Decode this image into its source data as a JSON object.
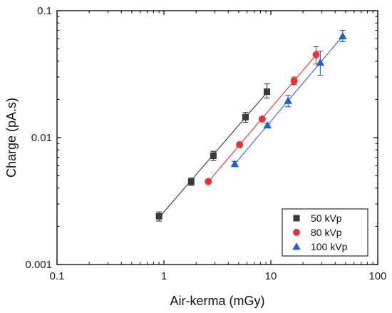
{
  "chart_data": {
    "type": "scatter",
    "title": "",
    "xlabel": "Air-kerma (mGy)",
    "ylabel": "Charge (pA.s)",
    "xscale": "log",
    "yscale": "log",
    "xlim": [
      0.1,
      100
    ],
    "ylim": [
      0.001,
      0.1
    ],
    "x_ticks": [
      {
        "value": 0.1,
        "label": "0.1"
      },
      {
        "value": 1,
        "label": "1"
      },
      {
        "value": 10,
        "label": "10"
      },
      {
        "value": 100,
        "label": "100"
      }
    ],
    "y_ticks": [
      {
        "value": 0.001,
        "label": "0.001"
      },
      {
        "value": 0.01,
        "label": "0.01"
      },
      {
        "value": 0.1,
        "label": "0.1"
      }
    ],
    "grid": false,
    "legend": {
      "position": "bottom-right",
      "entries": [
        "50 kVp",
        "80 kVp",
        "100 kVp"
      ]
    },
    "series": [
      {
        "name": "50 kVp",
        "marker": "square",
        "color": "#3a3a3a",
        "line_color": "#3a3a3a",
        "fit": true,
        "fit_range": [
          0.9,
          9.5
        ],
        "points": [
          {
            "x": 0.9,
            "y": 0.0024,
            "err_low": 0.0022,
            "err_high": 0.0026
          },
          {
            "x": 1.8,
            "y": 0.0045,
            "err_low": 0.0042,
            "err_high": 0.0048
          },
          {
            "x": 2.9,
            "y": 0.0072,
            "err_low": 0.0066,
            "err_high": 0.0078
          },
          {
            "x": 5.8,
            "y": 0.0145,
            "err_low": 0.0132,
            "err_high": 0.0158
          },
          {
            "x": 9.2,
            "y": 0.023,
            "err_low": 0.0205,
            "err_high": 0.0265
          }
        ]
      },
      {
        "name": "80 kVp",
        "marker": "circle",
        "color": "#e8323a",
        "line_color": "#e8323a",
        "fit": true,
        "fit_range": [
          2.6,
          28
        ],
        "points": [
          {
            "x": 2.6,
            "y": 0.0045,
            "err_low": 0.0044,
            "err_high": 0.0046
          },
          {
            "x": 5.1,
            "y": 0.0088,
            "err_low": 0.0084,
            "err_high": 0.0092
          },
          {
            "x": 8.3,
            "y": 0.014,
            "err_low": 0.0136,
            "err_high": 0.0144
          },
          {
            "x": 16.5,
            "y": 0.028,
            "err_low": 0.0262,
            "err_high": 0.03
          },
          {
            "x": 26.5,
            "y": 0.045,
            "err_low": 0.038,
            "err_high": 0.052
          }
        ]
      },
      {
        "name": "100 kVp",
        "marker": "triangle",
        "color": "#1f5fd6",
        "line_color": "#3a5ee8",
        "fit": true,
        "fit_range": [
          4.6,
          48
        ],
        "points": [
          {
            "x": 4.6,
            "y": 0.0062,
            "err_low": 0.0059,
            "err_high": 0.0065
          },
          {
            "x": 9.3,
            "y": 0.0125,
            "err_low": 0.0121,
            "err_high": 0.0129
          },
          {
            "x": 14.5,
            "y": 0.0195,
            "err_low": 0.0175,
            "err_high": 0.0215
          },
          {
            "x": 29.0,
            "y": 0.039,
            "err_low": 0.031,
            "err_high": 0.048
          },
          {
            "x": 47.0,
            "y": 0.063,
            "err_low": 0.057,
            "err_high": 0.07
          }
        ]
      }
    ]
  }
}
